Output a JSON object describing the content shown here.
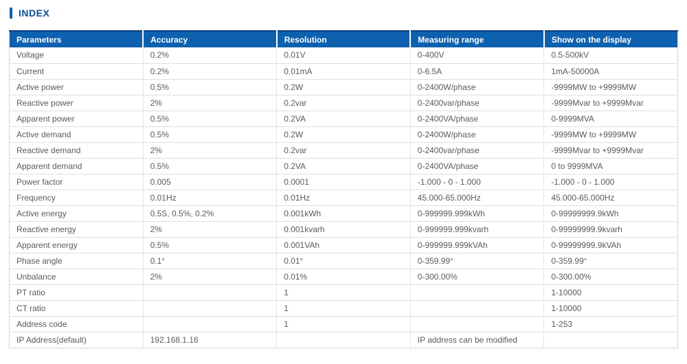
{
  "page": {
    "title": "INDEX"
  },
  "colors": {
    "header_bg": "#0e61ae",
    "header_top": "#083f7e",
    "title_color": "#0b4c94",
    "body_text": "#5a5a5a",
    "border_color": "#dfdfdf"
  },
  "table": {
    "columns": [
      "Parameters",
      "Accuracy",
      "Resolution",
      "Measuring range",
      "Show on the display"
    ],
    "rows": [
      [
        "Voltage",
        "0.2%",
        "0.01V",
        "0-400V",
        "0.5-500kV"
      ],
      [
        "Current",
        "0.2%",
        "0.01mA",
        "0-6.5A",
        "1mA-50000A"
      ],
      [
        "Active power",
        "0.5%",
        "0.2W",
        "0-2400W/phase",
        "-9999MW to +9999MW"
      ],
      [
        "Reactive power",
        "2%",
        "0.2var",
        "0-2400var/phase",
        "-9999Mvar to +9999Mvar"
      ],
      [
        "Apparent power",
        "0.5%",
        "0.2VA",
        "0-2400VA/phase",
        "0-9999MVA"
      ],
      [
        "Active demand",
        "0.5%",
        "0.2W",
        "0-2400W/phase",
        "-9999MW to +9999MW"
      ],
      [
        "Reactive demand",
        "2%",
        "0.2var",
        "0-2400var/phase",
        "-9999Mvar to +9999Mvar"
      ],
      [
        "Apparent demand",
        "0.5%",
        "0.2VA",
        "0-2400VA/phase",
        "0 to 9999MVA"
      ],
      [
        "Power factor",
        "0.005",
        "0.0001",
        "-1.000 - 0 - 1.000",
        "-1.000 - 0 - 1.000"
      ],
      [
        "Frequency",
        "0.01Hz",
        "0.01Hz",
        "45.000-65.000Hz",
        "45.000-65.000Hz"
      ],
      [
        "Active energy",
        "0.5S, 0.5%, 0.2%",
        "0.001kWh",
        "0-999999.999kWh",
        "0-99999999.9kWh"
      ],
      [
        "Reactive energy",
        "2%",
        "0.001kvarh",
        "0-999999.999kvarh",
        "0-99999999.9kvarh"
      ],
      [
        "Apparent energy",
        "0.5%",
        "0.001VAh",
        "0-999999.999kVAh",
        "0-99999999.9kVAh"
      ],
      [
        "Phase angle",
        "0.1°",
        "0.01°",
        "0-359.99°",
        "0-359.99°"
      ],
      [
        "Unbalance",
        "2%",
        "0.01%",
        "0-300.00%",
        "0-300.00%"
      ],
      [
        "PT ratio",
        "",
        "1",
        "",
        "1-10000"
      ],
      [
        "CT ratio",
        "",
        "1",
        "",
        "1-10000"
      ],
      [
        "Address code",
        "",
        "1",
        "",
        "1-253"
      ],
      [
        "IP Address(default)",
        "192.168.1.16",
        "",
        "IP address can be modified",
        ""
      ]
    ]
  }
}
